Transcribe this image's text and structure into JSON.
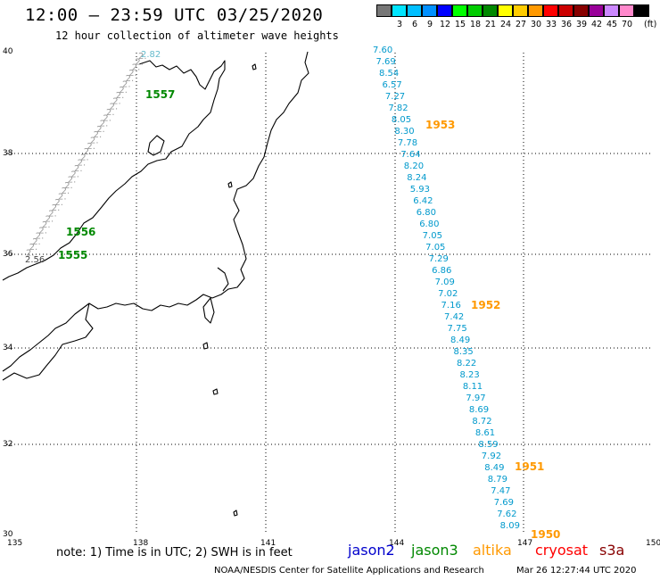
{
  "header": {
    "title": "12:00 – 23:59 UTC 03/25/2020",
    "subtitle": "12 hour collection of altimeter wave heights"
  },
  "legend": {
    "unit": "(ft)",
    "swatches": [
      {
        "label": "",
        "color": "#777777"
      },
      {
        "label": "3",
        "color": "#00e5ff"
      },
      {
        "label": "6",
        "color": "#00bfff"
      },
      {
        "label": "9",
        "color": "#0090ff"
      },
      {
        "label": "12",
        "color": "#0000ff"
      },
      {
        "label": "15",
        "color": "#00ff00"
      },
      {
        "label": "18",
        "color": "#00cc00"
      },
      {
        "label": "21",
        "color": "#008800"
      },
      {
        "label": "24",
        "color": "#ffff00"
      },
      {
        "label": "27",
        "color": "#ffcc00"
      },
      {
        "label": "30",
        "color": "#ff9900"
      },
      {
        "label": "33",
        "color": "#ff0000"
      },
      {
        "label": "36",
        "color": "#cc0000"
      },
      {
        "label": "39",
        "color": "#880000"
      },
      {
        "label": "42",
        "color": "#990099"
      },
      {
        "label": "45",
        "color": "#cc88ff"
      },
      {
        "label": "70",
        "color": "#ff88cc"
      },
      {
        "label": "",
        "color": "#000000"
      }
    ]
  },
  "axes": {
    "x_ticks": [
      "135",
      "138",
      "141",
      "144",
      "147",
      "150"
    ],
    "y_ticks": [
      "40",
      "38",
      "36",
      "34",
      "32",
      "30"
    ]
  },
  "tracks": {
    "jason2_color": "#0000cc",
    "jason3_color": "#008800",
    "altika_color": "#ff9900",
    "east_track": {
      "values": [
        "7.60",
        "7.69",
        "8.54",
        "6.57",
        "7.27",
        "7.82",
        "8.05",
        "8.30",
        "7.78",
        "7.64",
        "8.20",
        "8.24",
        "5.93",
        "6.42",
        "6.80",
        "6.80",
        "7.05",
        "7.05",
        "7.29",
        "6.86",
        "7.09",
        "7.02",
        "7.16",
        "7.42",
        "7.75",
        "8.49",
        "8.35",
        "8.22",
        "8.23",
        "8.11",
        "7.97",
        "8.69",
        "8.72",
        "8.61",
        "8.59",
        "7.92",
        "8.49",
        "8.79",
        "7.47",
        "7.69",
        "7.62",
        "8.09"
      ],
      "color": "#0099cc",
      "times": [
        "1953",
        "1952",
        "1951",
        "1950"
      ],
      "time_color": "#ff9900"
    },
    "west_track": {
      "top_value": "2.82",
      "bottom_values": [
        "2.56"
      ],
      "times": [
        "1557",
        "1556",
        "1555"
      ],
      "time_color": "#008800"
    }
  },
  "footer": {
    "note": "note: 1) Time is in UTC; 2) SWH is in feet",
    "satellites": [
      {
        "name": "jason2",
        "color": "#0000cc"
      },
      {
        "name": "jason3",
        "color": "#008800"
      },
      {
        "name": "altika",
        "color": "#ff9900"
      },
      {
        "name": "cryosat",
        "color": "#ff0000"
      },
      {
        "name": "s3a",
        "color": "#880000"
      }
    ],
    "credit": "NOAA/NESDIS Center for Satellite Applications and Research",
    "timestamp": "Mar 26 12:27:44 UTC 2020"
  }
}
